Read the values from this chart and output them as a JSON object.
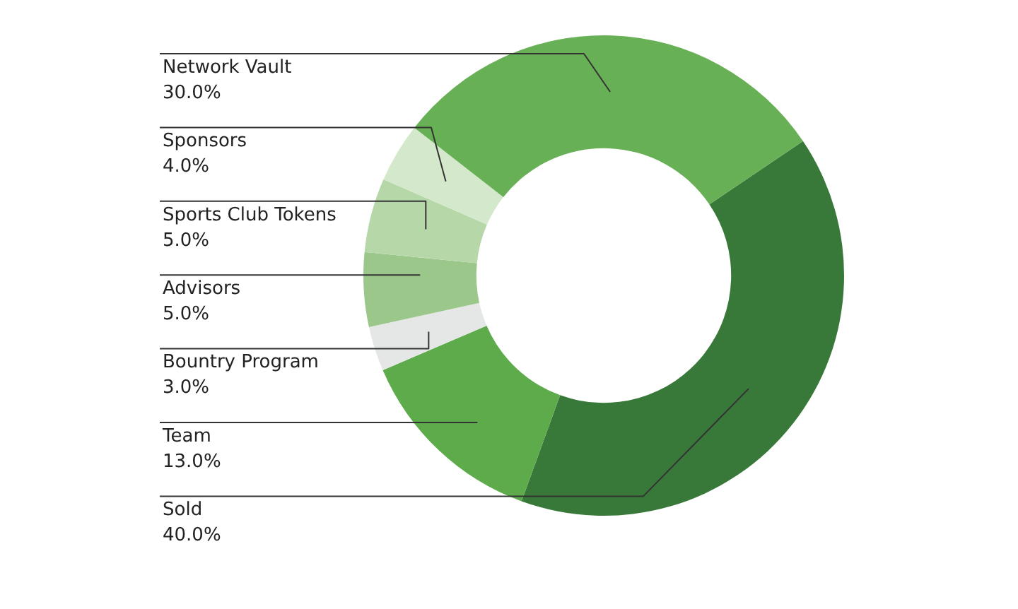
{
  "chart_data": {
    "type": "donut",
    "categories": [
      "Network Vault",
      "Sponsors",
      "Sports Club Tokens",
      "Advisors",
      "Bountry Program",
      "Team",
      "Sold"
    ],
    "values": [
      30,
      4,
      5,
      5,
      3,
      13,
      40
    ],
    "value_labels": [
      "30.0%",
      "4.0%",
      "5.0%",
      "5.0%",
      "3.0%",
      "13.0%",
      "40.0%"
    ],
    "colors": [
      "#68b055",
      "#d4e9cc",
      "#b6d7a8",
      "#9cc78a",
      "#e5e7e7",
      "#5dab4b",
      "#38793a"
    ],
    "legend": false
  }
}
